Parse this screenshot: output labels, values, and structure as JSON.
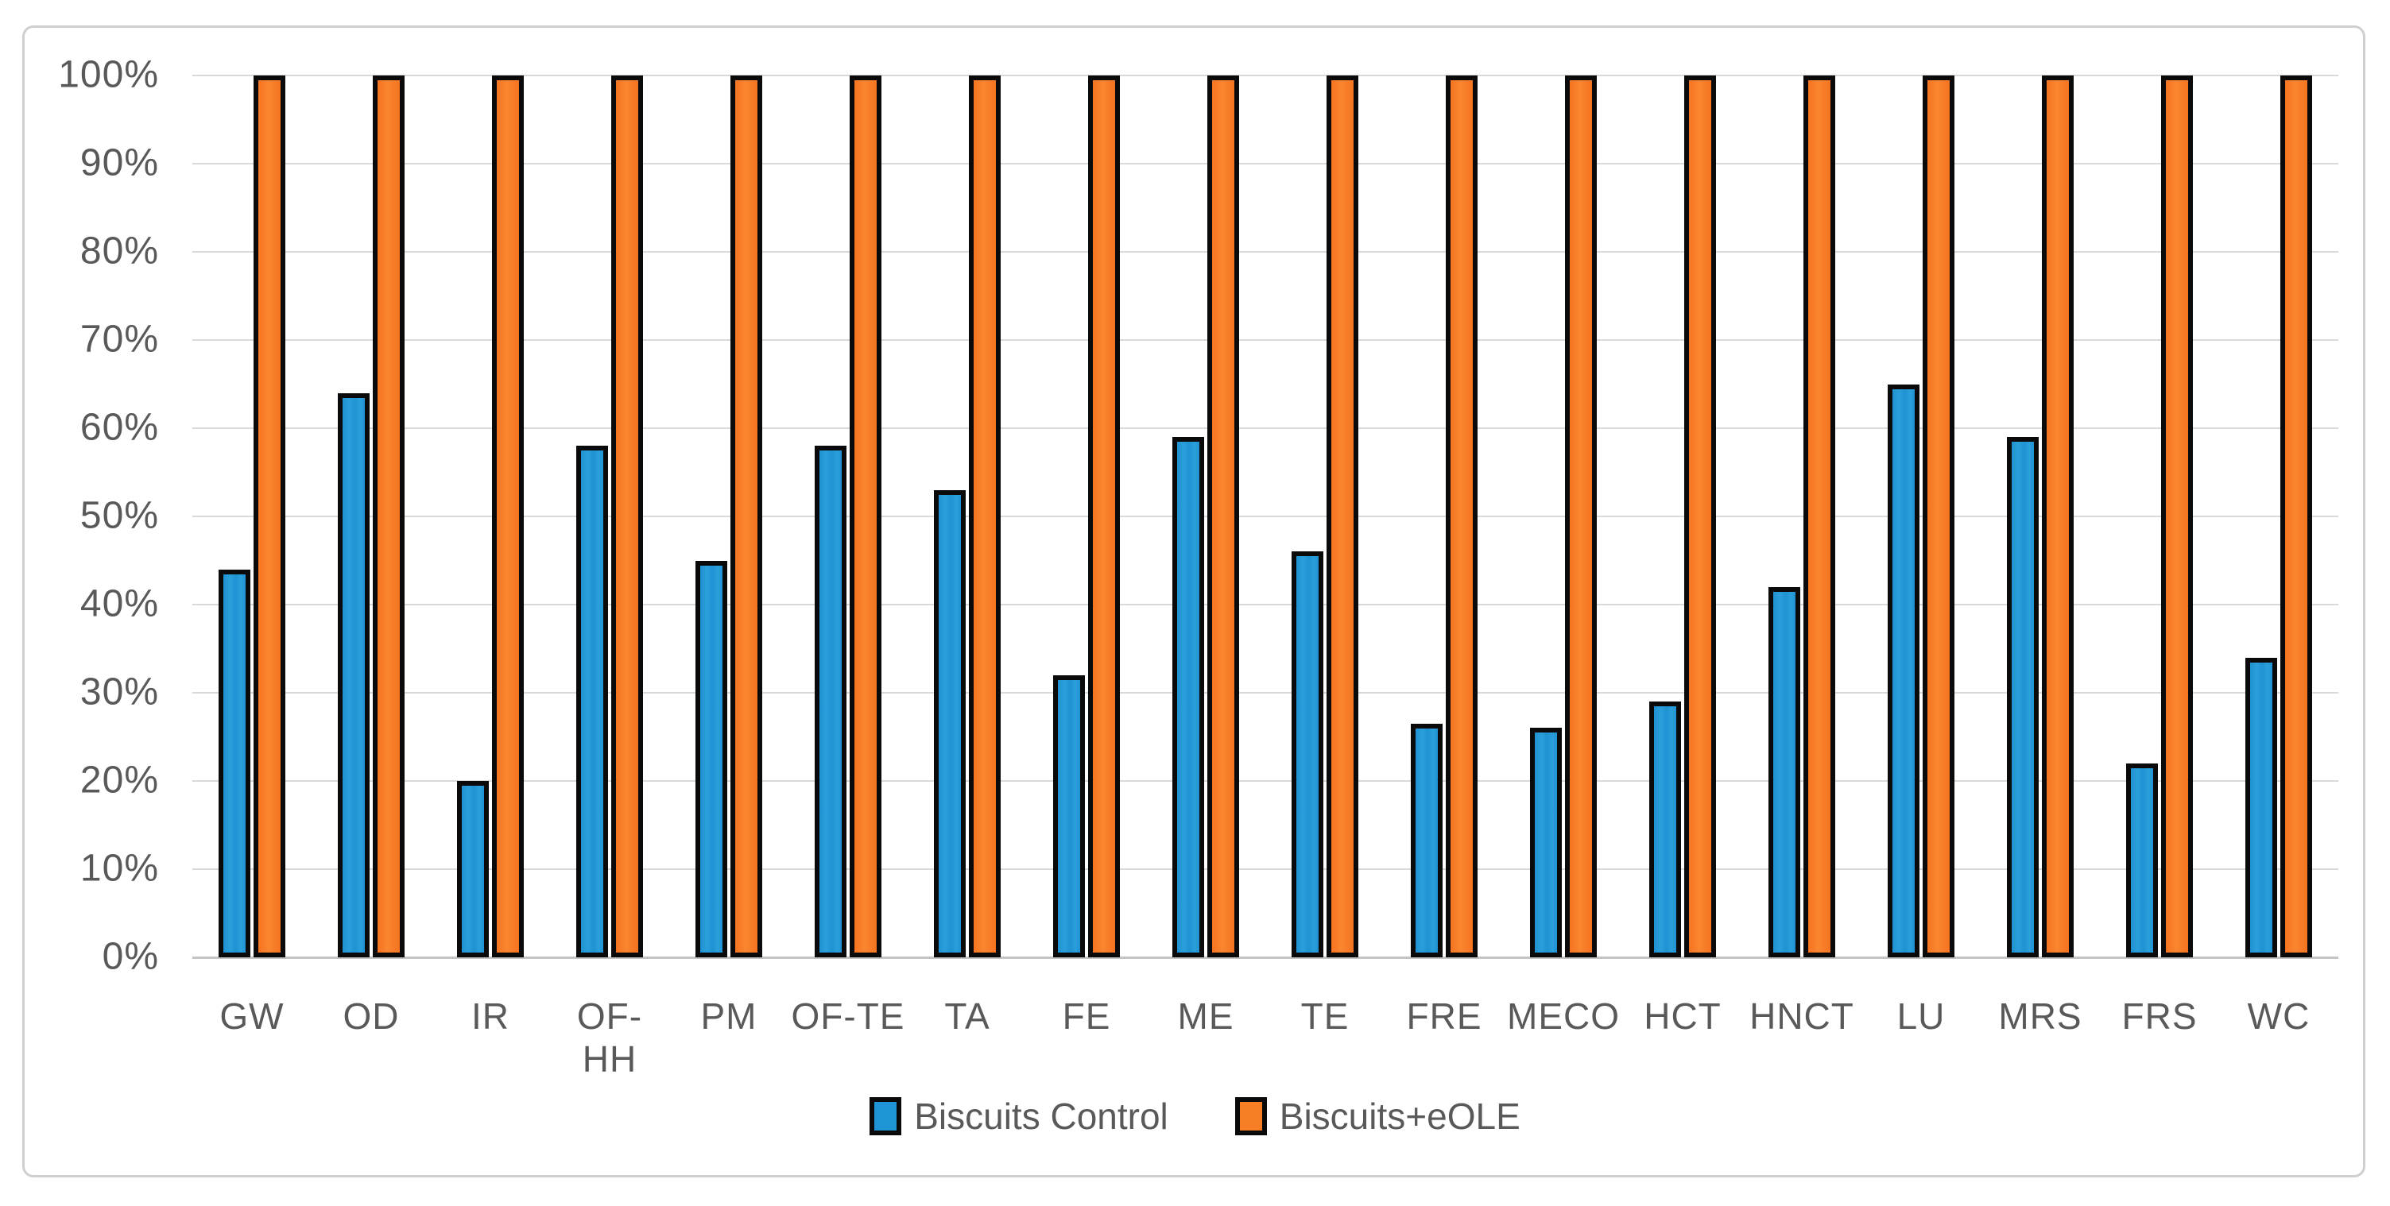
{
  "chart_data": {
    "type": "bar",
    "title": "",
    "xlabel": "",
    "ylabel": "",
    "categories": [
      "GW",
      "OD",
      "IR",
      "OF-HH",
      "PM",
      "OF-TE",
      "TA",
      "FE",
      "ME",
      "TE",
      "FRE",
      "MECO",
      "HCT",
      "HNCT",
      "LU",
      "MRS",
      "FRS",
      "WC"
    ],
    "series": [
      {
        "name": "Biscuits Control",
        "color": "#2095d5",
        "values": [
          44,
          64,
          20,
          58,
          45,
          58,
          53,
          32,
          59,
          46,
          26.5,
          26,
          29,
          42,
          65,
          59,
          22,
          34
        ]
      },
      {
        "name": "Biscuits+eOLE",
        "color": "#f87e26",
        "values": [
          100,
          100,
          100,
          100,
          100,
          100,
          100,
          100,
          100,
          100,
          100,
          100,
          100,
          100,
          100,
          100,
          100,
          100
        ]
      }
    ],
    "y_tick_labels": [
      "100%",
      "90%",
      "80%",
      "70%",
      "60%",
      "50%",
      "40%",
      "30%",
      "20%",
      "10%",
      "0%"
    ],
    "ylim": [
      0,
      100
    ],
    "y_step": 10,
    "grid": "horizontal",
    "gridline_color": "#d9d9d9",
    "axis_line_color": "#c4c4c4",
    "bar_border_color": "#0a0a0a",
    "text_color": "#595959",
    "legend_position": "bottom"
  }
}
